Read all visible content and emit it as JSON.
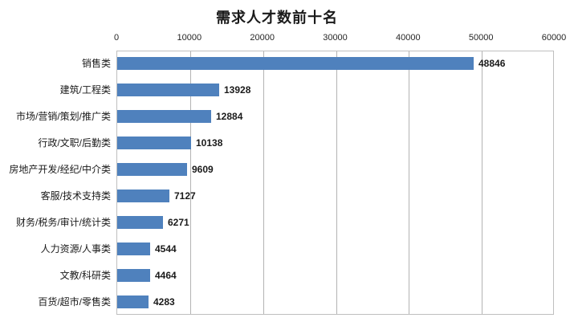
{
  "chart_data": {
    "type": "bar",
    "orientation": "horizontal",
    "title": "需求人才数前十名",
    "categories": [
      "销售类",
      "建筑/工程类",
      "市场/营销/策划/推广类",
      "行政/文职/后勤类",
      "房地产开发/经纪/中介类",
      "客服/技术支持类",
      "财务/税务/审计/统计类",
      "人力资源/人事类",
      "文教/科研类",
      "百货/超市/零售类"
    ],
    "values": [
      48846,
      13928,
      12884,
      10138,
      9609,
      7127,
      6271,
      4544,
      4464,
      4283
    ],
    "data_labels": [
      "48846",
      "13928",
      "12884",
      "10138",
      "9609",
      "7127",
      "6271",
      "4544",
      "4464",
      "4283"
    ],
    "xlabel": "",
    "ylabel": "",
    "xlim": [
      0,
      60000
    ],
    "tick_step": 10000,
    "tick_labels": [
      "0",
      "10000",
      "20000",
      "30000",
      "40000",
      "50000",
      "60000"
    ],
    "axis_position": "top",
    "grid": true,
    "legend": false,
    "bar_color": "#4f81bd",
    "grid_color": "#b3b3b3",
    "border_color": "#bfbfbf"
  }
}
